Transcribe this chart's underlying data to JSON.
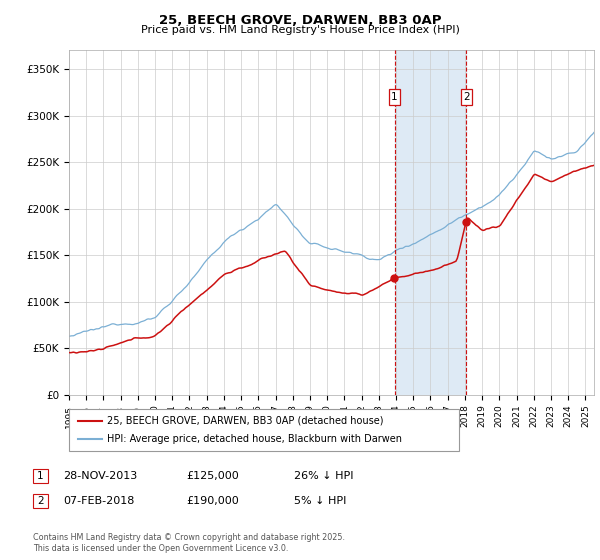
{
  "title": "25, BEECH GROVE, DARWEN, BB3 0AP",
  "subtitle": "Price paid vs. HM Land Registry's House Price Index (HPI)",
  "ylabel_ticks": [
    "£0",
    "£50K",
    "£100K",
    "£150K",
    "£200K",
    "£250K",
    "£300K",
    "£350K"
  ],
  "ytick_values": [
    0,
    50000,
    100000,
    150000,
    200000,
    250000,
    300000,
    350000
  ],
  "ylim": [
    0,
    370000
  ],
  "xlim_start": 1995.0,
  "xlim_end": 2025.5,
  "hpi_color": "#7bafd4",
  "price_color": "#cc1111",
  "marker1_date": 2013.91,
  "marker1_price": 125000,
  "marker1_label": "1",
  "marker2_date": 2018.09,
  "marker2_price": 190000,
  "marker2_label": "2",
  "legend_line1": "25, BEECH GROVE, DARWEN, BB3 0AP (detached house)",
  "legend_line2": "HPI: Average price, detached house, Blackburn with Darwen",
  "footer": "Contains HM Land Registry data © Crown copyright and database right 2025.\nThis data is licensed under the Open Government Licence v3.0.",
  "background_color": "#ffffff",
  "grid_color": "#cccccc",
  "shaded_region_color": "#deeaf5"
}
